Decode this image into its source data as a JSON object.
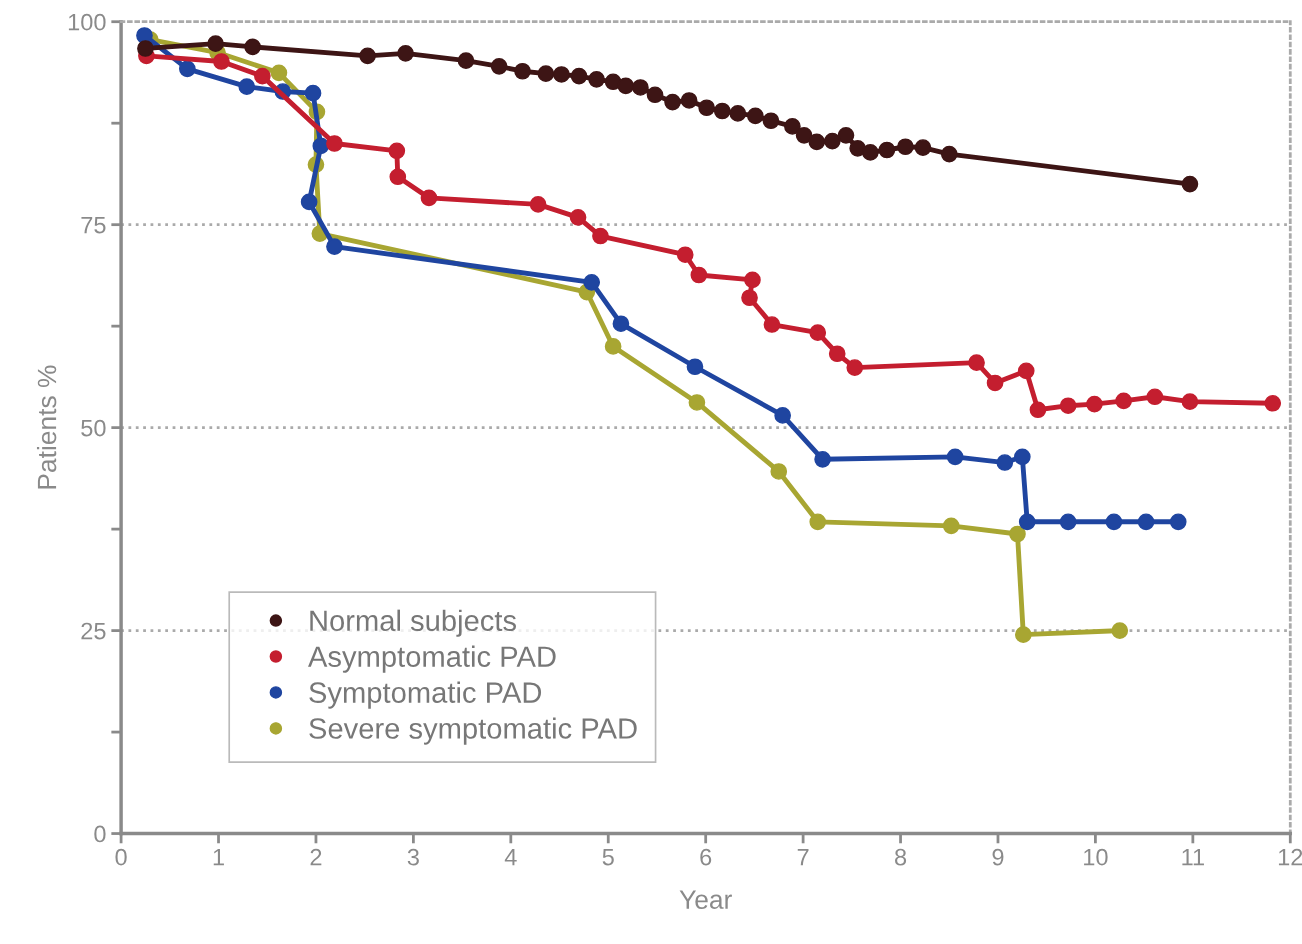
{
  "chart_data": {
    "type": "line",
    "xlabel": "Year",
    "ylabel": "Patients %",
    "xlim": [
      0,
      12
    ],
    "ylim": [
      0,
      100
    ],
    "xticks": [
      0,
      1,
      2,
      3,
      4,
      5,
      6,
      7,
      8,
      9,
      10,
      11,
      12
    ],
    "yticks": [
      0,
      {
        "value": 12.5,
        "label": null
      },
      25,
      {
        "value": 37.5,
        "label": null
      },
      50,
      {
        "value": 62.5,
        "label": null
      },
      75,
      {
        "value": 87.5,
        "label": null
      },
      100
    ],
    "grid": "y",
    "legend": "bottom left",
    "marker": "circle",
    "line_style": "solid",
    "series": [
      {
        "name": "Normal subjects",
        "color": "#3d1515",
        "x": [
          0.25,
          0.97,
          1.35,
          2.53,
          2.92,
          3.54,
          3.88,
          4.12,
          4.36,
          4.52,
          4.7,
          4.88,
          5.05,
          5.18,
          5.33,
          5.48,
          5.66,
          5.83,
          6.01,
          6.17,
          6.33,
          6.51,
          6.67,
          6.89,
          7.01,
          7.14,
          7.3,
          7.44,
          7.56,
          7.69,
          7.86,
          8.05,
          8.23,
          8.5,
          10.97
        ],
        "values": [
          96.7,
          97.3,
          96.9,
          95.8,
          96.1,
          95.2,
          94.5,
          93.9,
          93.6,
          93.5,
          93.3,
          92.9,
          92.6,
          92.1,
          91.9,
          91.0,
          90.1,
          90.3,
          89.4,
          89.0,
          88.7,
          88.4,
          87.8,
          87.1,
          86.0,
          85.2,
          85.3,
          86.0,
          84.4,
          83.9,
          84.2,
          84.6,
          84.5,
          83.7,
          80.0
        ]
      },
      {
        "name": "Asymptomatic PAD",
        "color": "#c41e2f",
        "x": [
          0.26,
          1.03,
          1.45,
          2.19,
          2.83,
          2.84,
          3.16,
          4.28,
          4.69,
          4.92,
          5.79,
          5.93,
          6.48,
          6.45,
          6.68,
          7.15,
          7.35,
          7.53,
          8.78,
          8.97,
          9.29,
          9.41,
          9.72,
          9.99,
          10.29,
          10.61,
          10.97,
          11.82
        ],
        "values": [
          95.8,
          95.1,
          93.3,
          85.0,
          84.1,
          80.9,
          78.3,
          77.5,
          75.9,
          73.6,
          71.3,
          68.8,
          68.2,
          66.0,
          62.7,
          61.7,
          59.1,
          57.4,
          58.0,
          55.5,
          57.0,
          52.2,
          52.7,
          52.9,
          53.3,
          53.8,
          53.2,
          53.0
        ]
      },
      {
        "name": "Symptomatic PAD",
        "color": "#1f45a0",
        "x": [
          0.24,
          0.68,
          1.29,
          1.66,
          1.97,
          2.05,
          1.93,
          2.19,
          4.83,
          5.13,
          5.89,
          6.79,
          7.2,
          8.56,
          9.07,
          9.25,
          9.3,
          9.72,
          10.19,
          10.52,
          10.85
        ],
        "values": [
          98.3,
          94.2,
          92.0,
          91.4,
          91.2,
          84.7,
          77.8,
          72.3,
          67.9,
          62.8,
          57.5,
          51.5,
          46.1,
          46.4,
          45.7,
          46.4,
          38.4,
          38.4,
          38.4,
          38.4,
          38.4
        ]
      },
      {
        "name": "Severe symptomatic PAD",
        "color": "#a8a632",
        "x": [
          0.3,
          0.99,
          1.62,
          2.01,
          2.0,
          2.04,
          4.78,
          5.05,
          5.91,
          6.75,
          7.15,
          8.52,
          9.2,
          9.26,
          10.25
        ],
        "values": [
          97.8,
          96.2,
          93.7,
          88.9,
          82.4,
          73.9,
          66.7,
          60.0,
          53.1,
          44.6,
          38.4,
          37.9,
          36.9,
          24.5,
          25.0
        ]
      }
    ]
  }
}
